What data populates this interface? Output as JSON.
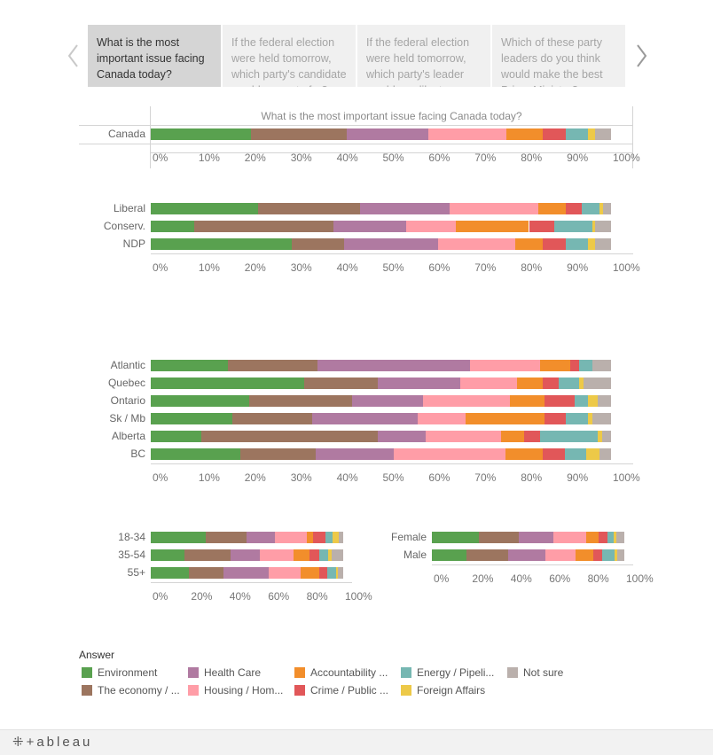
{
  "tabs": [
    {
      "label": "What is the most important issue facing Canada today?",
      "active": true
    },
    {
      "label": "If the federal election were held tomorrow, which party's candidate would you vote for?",
      "active": false
    },
    {
      "label": "If the federal election were held tomorrow, which party's leader would you like to see win?",
      "active": false
    },
    {
      "label": "Which of these party leaders do you think would make the best Prime Minister?",
      "active": false
    }
  ],
  "legend": {
    "title": "Answer",
    "items": [
      {
        "label": "Environment",
        "key": "environment"
      },
      {
        "label": "Health Care",
        "key": "health_care"
      },
      {
        "label": "Accountability ...",
        "key": "accountability"
      },
      {
        "label": "Energy / Pipeli...",
        "key": "energy"
      },
      {
        "label": "Not sure",
        "key": "not_sure"
      },
      {
        "label": "The economy / ...",
        "key": "economy"
      },
      {
        "label": "Housing / Hom...",
        "key": "housing"
      },
      {
        "label": "Crime / Public ...",
        "key": "crime"
      },
      {
        "label": "Foreign Affairs",
        "key": "foreign"
      }
    ]
  },
  "footer": {
    "logo_text": "⁜+ableau"
  },
  "chart_data": [
    {
      "type": "bar",
      "orientation": "horizontal-stacked-100",
      "title": "What is the most important issue facing Canada today?",
      "series_order": [
        "Environment",
        "The economy / ...",
        "Health Care",
        "Housing / Hom...",
        "Accountability ...",
        "Crime / Public ...",
        "Energy / Pipeli...",
        "Foreign Affairs",
        "Not sure"
      ],
      "colors": [
        "#59a14f",
        "#9c755f",
        "#b07aa1",
        "#ff9da7",
        "#f28e2b",
        "#e15759",
        "#76b7b2",
        "#edc948",
        "#bab0ac"
      ],
      "categories": [
        "Canada"
      ],
      "values": [
        [
          22,
          21,
          18,
          17,
          8,
          5,
          5,
          1.5,
          3.5
        ]
      ],
      "xlim": [
        0,
        100
      ],
      "ticks": [
        "0%",
        "10%",
        "20%",
        "30%",
        "40%",
        "50%",
        "60%",
        "70%",
        "80%",
        "90%",
        "100%"
      ]
    },
    {
      "type": "bar",
      "orientation": "horizontal-stacked-100",
      "categories": [
        "Liberal",
        "Conserv.",
        "NDP"
      ],
      "values": [
        [
          23.5,
          22.5,
          19.5,
          19.5,
          6,
          3.5,
          4,
          0.7,
          1.8
        ],
        [
          9.5,
          30.5,
          16,
          11,
          16,
          5.5,
          8.5,
          0.5,
          3.5
        ],
        [
          31,
          11.5,
          20.5,
          17,
          6,
          5,
          5,
          1.5,
          3.5
        ]
      ],
      "xlim": [
        0,
        100
      ],
      "ticks": [
        "0%",
        "10%",
        "20%",
        "30%",
        "40%",
        "50%",
        "60%",
        "70%",
        "80%",
        "90%",
        "100%"
      ]
    },
    {
      "type": "bar",
      "orientation": "horizontal-stacked-100",
      "categories": [
        "Atlantic",
        "Quebec",
        "Ontario",
        "Sk / Mb",
        "Alberta",
        "BC"
      ],
      "values": [
        [
          17,
          19.5,
          33.5,
          15.5,
          6.5,
          2,
          3,
          0,
          4
        ],
        [
          33.5,
          16,
          18,
          12.5,
          5.5,
          3.5,
          4.5,
          1,
          6
        ],
        [
          21.5,
          22.5,
          15.5,
          19,
          7.5,
          6.5,
          3,
          2,
          3
        ],
        [
          18,
          17.5,
          23,
          10.5,
          17.5,
          4.5,
          5,
          1,
          4
        ],
        [
          11,
          38.5,
          10.5,
          16.5,
          5,
          3.5,
          12.5,
          1,
          2
        ],
        [
          19.5,
          16.5,
          17,
          24.5,
          8,
          5,
          4.5,
          3,
          2.5
        ]
      ],
      "xlim": [
        0,
        100
      ],
      "ticks": [
        "0%",
        "10%",
        "20%",
        "30%",
        "40%",
        "50%",
        "60%",
        "70%",
        "80%",
        "90%",
        "100%"
      ]
    },
    {
      "type": "bar",
      "orientation": "horizontal-stacked-100",
      "categories": [
        "18-34",
        "35-54",
        "55+"
      ],
      "values": [
        [
          29,
          21.5,
          15,
          17,
          3,
          6.5,
          4,
          3,
          2.5
        ],
        [
          17.5,
          24,
          15,
          17.5,
          8.5,
          5,
          4.5,
          2,
          6
        ],
        [
          20,
          18,
          24,
          16.5,
          10,
          4,
          5,
          0.5,
          3
        ]
      ],
      "xlim": [
        0,
        100
      ],
      "ticks": [
        "0%",
        "20%",
        "40%",
        "60%",
        "80%",
        "100%"
      ]
    },
    {
      "type": "bar",
      "orientation": "horizontal-stacked-100",
      "categories": [
        "Female",
        "Male"
      ],
      "values": [
        [
          24.5,
          20.5,
          18,
          17,
          6,
          5,
          3,
          1.5,
          4
        ],
        [
          18,
          21.5,
          19,
          16,
          9,
          4.5,
          6.5,
          1.5,
          3.5
        ]
      ],
      "xlim": [
        0,
        100
      ],
      "ticks": [
        "0%",
        "20%",
        "40%",
        "60%",
        "80%",
        "100%"
      ]
    }
  ]
}
